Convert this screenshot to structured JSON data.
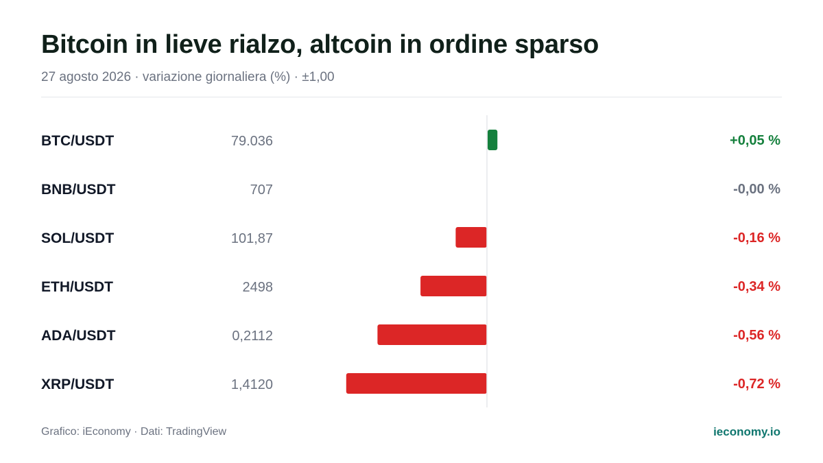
{
  "header": {
    "title": "Bitcoin in lieve rialzo, altcoin in ordine sparso",
    "subtitle": "27 agosto 2026 · variazione giornaliera (%) · ±1,00"
  },
  "footer": {
    "source": "Grafico: iEconomy · Dati: TradingView",
    "brand": "ieconomy.io"
  },
  "colors": {
    "positive": "#15803d",
    "negative": "#dc2626",
    "neutral": "#6b7280",
    "positive_bar": "#15803d",
    "negative_bar": "#dc2626"
  },
  "chart_data": {
    "type": "bar",
    "orientation": "horizontal",
    "xlim": [
      -1.0,
      1.0
    ],
    "rows": [
      {
        "pair": "BTC/USDT",
        "price": "79.036",
        "change": 0.05,
        "change_label": "+0,05 %"
      },
      {
        "pair": "BNB/USDT",
        "price": "707",
        "change": -0.0,
        "change_label": "-0,00 %"
      },
      {
        "pair": "SOL/USDT",
        "price": "101,87",
        "change": -0.16,
        "change_label": "-0,16 %"
      },
      {
        "pair": "ETH/USDT",
        "price": "2498",
        "change": -0.34,
        "change_label": "-0,34 %"
      },
      {
        "pair": "ADA/USDT",
        "price": "0,2112",
        "change": -0.56,
        "change_label": "-0,56 %"
      },
      {
        "pair": "XRP/USDT",
        "price": "1,4120",
        "change": -0.72,
        "change_label": "-0,72 %"
      }
    ]
  }
}
